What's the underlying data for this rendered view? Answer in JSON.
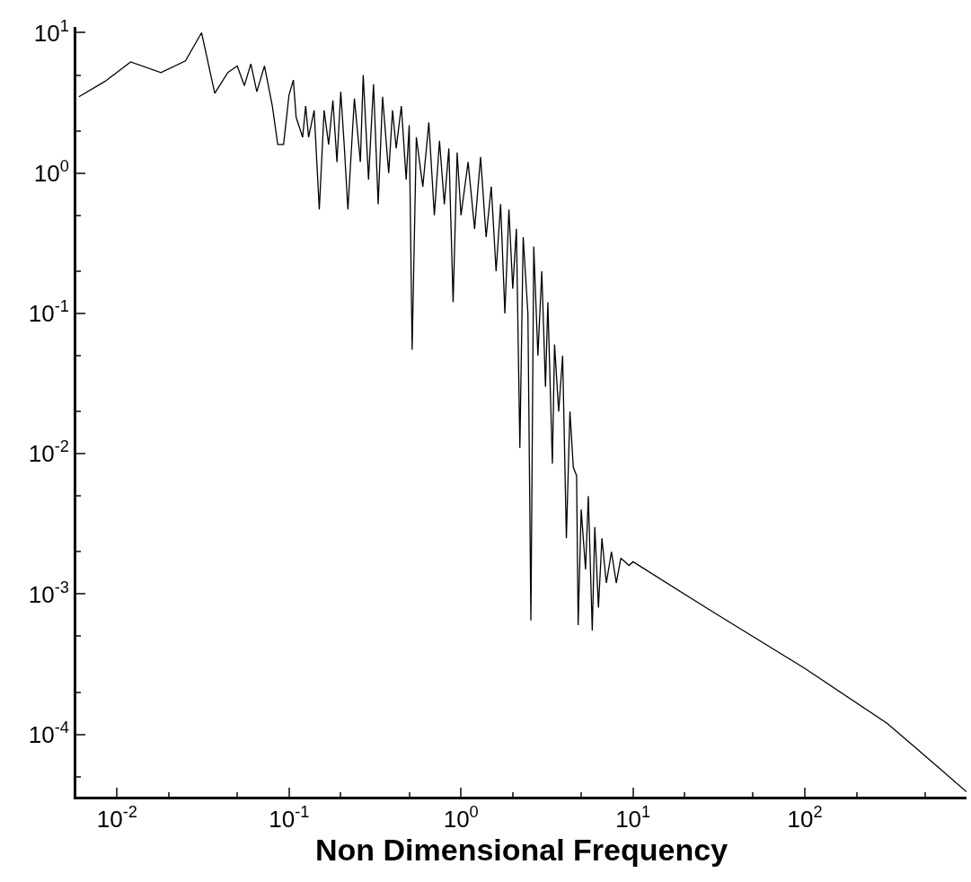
{
  "chart_data": {
    "type": "line",
    "xlabel": "Non Dimensional Frequency",
    "log": "xy",
    "legend": false,
    "marker": "none",
    "line_style": "solid",
    "xlim": [
      0.0058,
      870
    ],
    "ylim": [
      3.6e-05,
      11
    ],
    "xticks": [
      {
        "value": 0.01,
        "label": "10$^{-2}$"
      },
      {
        "value": 0.1,
        "label": "10$^{-1}$"
      },
      {
        "value": 1,
        "label": "10$^{0}$"
      },
      {
        "value": 10,
        "label": "10$^{1}$"
      },
      {
        "value": 100,
        "label": "10$^{2}$"
      }
    ],
    "yticks": [
      {
        "value": 0.0001,
        "label": "10$^{-4}$"
      },
      {
        "value": 0.001,
        "label": "10$^{-3}$"
      },
      {
        "value": 0.01,
        "label": "10$^{-2}$"
      },
      {
        "value": 0.1,
        "label": "10$^{-1}$"
      },
      {
        "value": 1,
        "label": "10$^{0}$"
      },
      {
        "value": 10,
        "label": "10$^{1}$"
      }
    ],
    "x": [
      0.006,
      0.0085,
      0.012,
      0.018,
      0.025,
      0.031,
      0.037,
      0.044,
      0.05,
      0.055,
      0.06,
      0.065,
      0.072,
      0.08,
      0.086,
      0.093,
      0.1,
      0.106,
      0.11,
      0.12,
      0.125,
      0.13,
      0.14,
      0.15,
      0.16,
      0.17,
      0.18,
      0.19,
      0.2,
      0.21,
      0.22,
      0.24,
      0.26,
      0.27,
      0.29,
      0.31,
      0.33,
      0.35,
      0.38,
      0.4,
      0.42,
      0.45,
      0.48,
      0.5,
      0.52,
      0.55,
      0.6,
      0.65,
      0.7,
      0.75,
      0.8,
      0.85,
      0.9,
      0.95,
      1.0,
      1.1,
      1.2,
      1.3,
      1.4,
      1.5,
      1.6,
      1.7,
      1.8,
      1.9,
      2.0,
      2.1,
      2.2,
      2.3,
      2.45,
      2.55,
      2.65,
      2.8,
      2.95,
      3.1,
      3.2,
      3.4,
      3.5,
      3.7,
      3.9,
      4.1,
      4.3,
      4.5,
      4.7,
      4.8,
      5.0,
      5.3,
      5.5,
      5.8,
      6.0,
      6.3,
      6.6,
      7.0,
      7.5,
      8.0,
      8.5,
      9.5,
      10,
      30,
      100,
      300,
      600,
      870
    ],
    "series": [
      {
        "color": "#000000",
        "values": [
          3.5,
          4.5,
          6.2,
          5.2,
          6.3,
          10,
          3.7,
          5.2,
          5.8,
          4.2,
          6,
          3.8,
          5.8,
          3,
          1.6,
          1.6,
          3.6,
          4.6,
          2.5,
          1.8,
          3,
          1.8,
          2.8,
          0.55,
          2.8,
          1.6,
          3.3,
          1.2,
          3.8,
          1.5,
          0.55,
          3.4,
          1.2,
          5,
          0.9,
          4.3,
          0.6,
          3.5,
          1.0,
          2.8,
          1.5,
          3,
          0.9,
          2.2,
          0.055,
          1.8,
          0.8,
          2.3,
          0.5,
          1.7,
          0.6,
          1.5,
          0.12,
          1.4,
          0.5,
          1.2,
          0.4,
          1.3,
          0.35,
          0.8,
          0.2,
          0.6,
          0.1,
          0.55,
          0.15,
          0.4,
          0.011,
          0.35,
          0.1,
          0.00065,
          0.3,
          0.05,
          0.2,
          0.03,
          0.12,
          0.0085,
          0.06,
          0.02,
          0.05,
          0.0025,
          0.02,
          0.008,
          0.007,
          0.0006,
          0.004,
          0.0015,
          0.005,
          0.00055,
          0.003,
          0.0008,
          0.0025,
          0.0012,
          0.002,
          0.0012,
          0.0018,
          0.0016,
          0.0017,
          0.00073,
          0.000295,
          0.00012,
          5.8e-05,
          3.9e-05
        ]
      }
    ]
  }
}
